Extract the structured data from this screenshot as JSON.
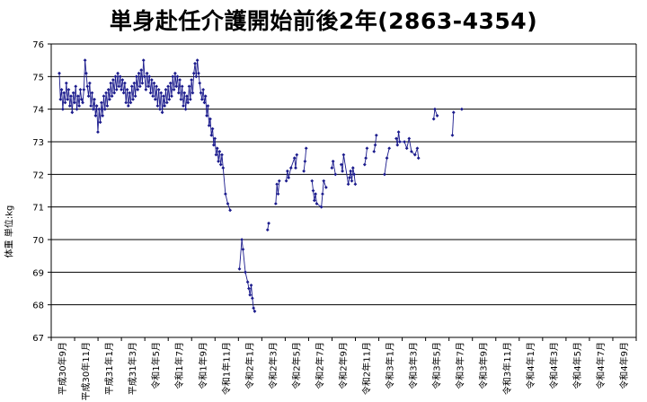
{
  "chart_data": {
    "type": "line",
    "title": "単身赴任介護開始前後2年(2863-4354)",
    "ylabel": "体重 単位:kg",
    "xlabel": "",
    "ylim": [
      67,
      76
    ],
    "yticks": [
      67,
      68,
      69,
      70,
      71,
      72,
      73,
      74,
      75,
      76
    ],
    "x_tick_labels": [
      "平成30年9月",
      "平成30年11月",
      "平成31年1月",
      "平成31年3月",
      "令和1年5月",
      "令和1年7月",
      "令和1年9月",
      "令和1年11月",
      "令和2年1月",
      "令和2年3月",
      "令和2年5月",
      "令和2年7月",
      "令和2年9月",
      "令和2年11月",
      "令和3年1月",
      "令和3年3月",
      "令和3年5月",
      "令和3年7月",
      "令和3年9月",
      "令和3年11月",
      "令和4年1月",
      "令和4年3月",
      "令和4年5月",
      "令和4年7月",
      "令和4年9月"
    ],
    "grid": {
      "horizontal": true,
      "vertical": false
    },
    "legend": "none",
    "colors": {
      "series": "#1a1a8c",
      "grid": "#000000"
    },
    "series": [
      {
        "values": [
          [
            0.0,
            75.1
          ],
          [
            0.1,
            74.3
          ],
          [
            0.2,
            74.6
          ],
          [
            0.3,
            74.0
          ],
          [
            0.4,
            74.5
          ],
          [
            0.5,
            74.2
          ],
          [
            0.6,
            74.8
          ],
          [
            0.7,
            74.3
          ],
          [
            0.8,
            74.6
          ],
          [
            0.9,
            74.1
          ],
          [
            1.0,
            74.4
          ],
          [
            1.1,
            73.9
          ],
          [
            1.2,
            74.5
          ],
          [
            1.3,
            74.2
          ],
          [
            1.4,
            74.7
          ],
          [
            1.5,
            74.0
          ],
          [
            1.6,
            74.4
          ],
          [
            1.7,
            74.1
          ],
          [
            1.8,
            74.6
          ],
          [
            1.9,
            74.3
          ],
          [
            2.0,
            74.2
          ],
          [
            2.1,
            74.6
          ],
          [
            2.2,
            75.5
          ],
          [
            2.3,
            75.1
          ],
          [
            2.4,
            74.7
          ],
          [
            2.5,
            74.4
          ],
          [
            2.6,
            74.8
          ],
          [
            2.7,
            74.1
          ],
          [
            2.8,
            74.5
          ],
          [
            2.9,
            74.0
          ],
          [
            3.0,
            74.3
          ],
          [
            3.1,
            73.8
          ],
          [
            3.2,
            74.1
          ],
          [
            3.3,
            73.3
          ],
          [
            3.4,
            74.0
          ],
          [
            3.5,
            73.6
          ],
          [
            3.6,
            74.2
          ],
          [
            3.7,
            73.8
          ],
          [
            3.8,
            74.4
          ],
          [
            3.9,
            74.0
          ],
          [
            4.0,
            74.5
          ],
          [
            4.1,
            74.1
          ],
          [
            4.2,
            74.6
          ],
          [
            4.3,
            74.3
          ],
          [
            4.4,
            74.8
          ],
          [
            4.5,
            74.4
          ],
          [
            4.6,
            74.9
          ],
          [
            4.7,
            74.5
          ],
          [
            4.8,
            75.0
          ],
          [
            4.9,
            74.6
          ],
          [
            5.0,
            75.1
          ],
          [
            5.1,
            74.7
          ],
          [
            5.2,
            75.0
          ],
          [
            5.3,
            74.6
          ],
          [
            5.4,
            74.9
          ],
          [
            5.5,
            74.5
          ],
          [
            5.6,
            74.8
          ],
          [
            5.7,
            74.2
          ],
          [
            5.8,
            74.6
          ],
          [
            5.9,
            74.1
          ],
          [
            6.0,
            74.5
          ],
          [
            6.1,
            74.2
          ],
          [
            6.2,
            74.7
          ],
          [
            6.3,
            74.3
          ],
          [
            6.4,
            74.8
          ],
          [
            6.5,
            74.4
          ],
          [
            6.6,
            75.0
          ],
          [
            6.7,
            74.6
          ],
          [
            6.8,
            75.1
          ],
          [
            6.9,
            74.7
          ],
          [
            7.0,
            75.2
          ],
          [
            7.1,
            74.8
          ],
          [
            7.2,
            75.5
          ],
          [
            7.3,
            75.0
          ],
          [
            7.4,
            74.6
          ],
          [
            7.5,
            75.1
          ],
          [
            7.6,
            74.7
          ],
          [
            7.7,
            75.0
          ],
          [
            7.8,
            74.5
          ],
          [
            7.9,
            74.9
          ],
          [
            8.0,
            74.4
          ],
          [
            8.1,
            74.8
          ],
          [
            8.2,
            74.3
          ],
          [
            8.3,
            74.7
          ],
          [
            8.4,
            74.1
          ],
          [
            8.5,
            74.6
          ],
          [
            8.6,
            74.0
          ],
          [
            8.7,
            74.5
          ],
          [
            8.8,
            73.9
          ],
          [
            8.9,
            74.4
          ],
          [
            9.0,
            74.1
          ],
          [
            9.1,
            74.6
          ],
          [
            9.2,
            74.2
          ],
          [
            9.3,
            74.7
          ],
          [
            9.4,
            74.3
          ],
          [
            9.5,
            74.8
          ],
          [
            9.6,
            74.4
          ],
          [
            9.7,
            75.0
          ],
          [
            9.8,
            74.6
          ],
          [
            9.9,
            75.1
          ],
          [
            10.0,
            74.7
          ],
          [
            10.1,
            75.0
          ],
          [
            10.2,
            74.5
          ],
          [
            10.3,
            74.9
          ],
          [
            10.4,
            74.3
          ],
          [
            10.5,
            74.7
          ],
          [
            10.6,
            74.1
          ],
          [
            10.7,
            74.5
          ],
          [
            10.8,
            74.0
          ],
          [
            10.9,
            74.4
          ],
          [
            11.0,
            74.2
          ],
          [
            11.1,
            74.7
          ],
          [
            11.2,
            74.3
          ],
          [
            11.3,
            74.9
          ],
          [
            11.4,
            74.5
          ],
          [
            11.5,
            75.1
          ],
          [
            11.6,
            75.4
          ],
          [
            11.7,
            75.0
          ],
          [
            11.8,
            75.5
          ],
          [
            11.9,
            75.1
          ],
          [
            12.0,
            74.8
          ],
          [
            12.1,
            74.5
          ],
          [
            12.2,
            74.3
          ],
          [
            12.3,
            74.6
          ],
          [
            12.4,
            74.2
          ],
          [
            12.5,
            74.4
          ],
          [
            12.6,
            73.8
          ],
          [
            12.7,
            74.1
          ],
          [
            12.8,
            73.5
          ],
          [
            12.9,
            73.7
          ],
          [
            13.0,
            73.2
          ],
          [
            13.1,
            73.4
          ],
          [
            13.2,
            72.9
          ],
          [
            13.3,
            73.1
          ],
          [
            13.4,
            72.6
          ],
          [
            13.5,
            72.8
          ],
          [
            13.6,
            72.4
          ],
          [
            13.7,
            72.7
          ],
          [
            13.8,
            72.3
          ],
          [
            13.9,
            72.6
          ],
          [
            14.0,
            72.2
          ],
          [
            14.2,
            71.4
          ],
          [
            14.4,
            71.1
          ],
          [
            14.6,
            70.9
          ],
          [
            15.4,
            69.1
          ],
          [
            15.6,
            70.0
          ],
          [
            15.7,
            69.7
          ],
          [
            15.9,
            69.0
          ],
          [
            16.1,
            68.7
          ],
          [
            16.2,
            68.5
          ],
          [
            16.3,
            68.3
          ],
          [
            16.4,
            68.6
          ],
          [
            16.5,
            68.2
          ],
          [
            16.6,
            67.9
          ],
          [
            16.7,
            67.8
          ],
          [
            17.8,
            70.3
          ],
          [
            17.9,
            70.5
          ],
          [
            18.5,
            71.1
          ],
          [
            18.6,
            71.7
          ],
          [
            18.7,
            71.4
          ],
          [
            18.8,
            71.8
          ],
          [
            19.4,
            71.8
          ],
          [
            19.5,
            72.1
          ],
          [
            19.6,
            71.9
          ],
          [
            19.8,
            72.2
          ],
          [
            20.1,
            72.5
          ],
          [
            20.2,
            72.2
          ],
          [
            20.3,
            72.6
          ],
          [
            20.9,
            72.1
          ],
          [
            21.0,
            72.4
          ],
          [
            21.1,
            72.8
          ],
          [
            21.6,
            71.8
          ],
          [
            21.7,
            71.5
          ],
          [
            21.8,
            71.2
          ],
          [
            21.9,
            71.4
          ],
          [
            22.0,
            71.1
          ],
          [
            22.4,
            71.0
          ],
          [
            22.5,
            71.4
          ],
          [
            22.6,
            71.8
          ],
          [
            22.8,
            71.6
          ],
          [
            23.3,
            72.2
          ],
          [
            23.4,
            72.4
          ],
          [
            23.6,
            72.0
          ],
          [
            24.1,
            72.3
          ],
          [
            24.2,
            72.1
          ],
          [
            24.3,
            72.6
          ],
          [
            24.7,
            71.7
          ],
          [
            24.8,
            71.9
          ],
          [
            24.9,
            72.1
          ],
          [
            25.0,
            71.8
          ],
          [
            25.1,
            72.2
          ],
          [
            25.2,
            72.0
          ],
          [
            25.3,
            71.7
          ],
          [
            26.1,
            72.3
          ],
          [
            26.2,
            72.5
          ],
          [
            26.3,
            72.8
          ],
          [
            26.9,
            72.7
          ],
          [
            27.0,
            72.9
          ],
          [
            27.1,
            73.2
          ],
          [
            27.8,
            72.0
          ],
          [
            28.0,
            72.5
          ],
          [
            28.2,
            72.8
          ],
          [
            28.8,
            73.1
          ],
          [
            28.9,
            72.9
          ],
          [
            29.0,
            73.3
          ],
          [
            29.1,
            73.0
          ],
          [
            29.5,
            73.0
          ],
          [
            29.7,
            72.8
          ],
          [
            29.9,
            73.1
          ],
          [
            30.1,
            72.7
          ],
          [
            30.4,
            72.6
          ],
          [
            30.6,
            72.8
          ],
          [
            30.7,
            72.5
          ],
          [
            32.0,
            73.7
          ],
          [
            32.1,
            74.0
          ],
          [
            32.3,
            73.8
          ],
          [
            33.6,
            73.2
          ],
          [
            33.7,
            73.9
          ],
          [
            34.4,
            74.0
          ]
        ]
      }
    ]
  }
}
